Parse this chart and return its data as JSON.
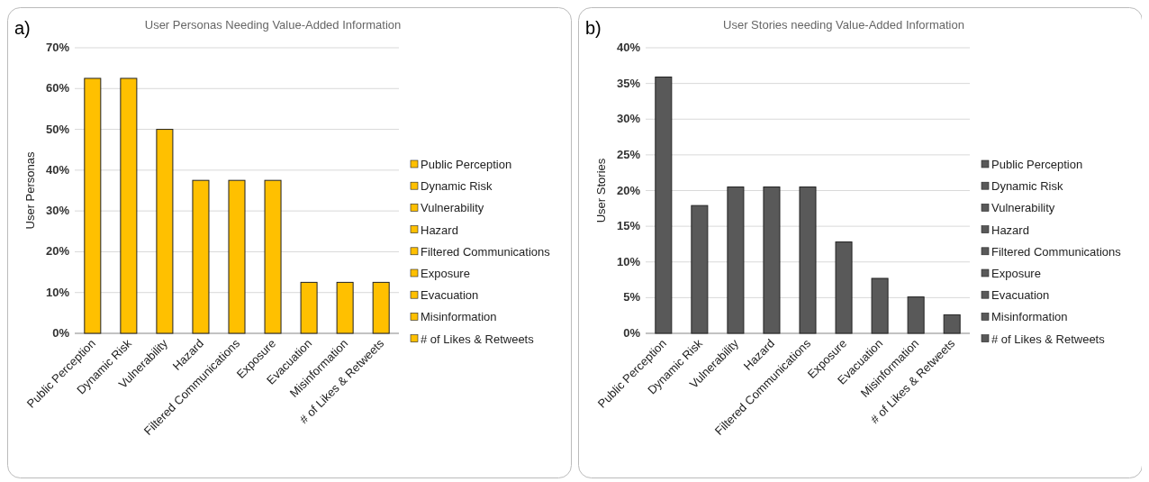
{
  "chart_data": [
    {
      "type": "bar",
      "title": "User Personas Needing Value-Added Information",
      "ylabel": "User Personas",
      "annotations": [
        "a)"
      ],
      "categories": [
        "Public Perception",
        "Dynamic Risk",
        "Vulnerability",
        "Hazard",
        "Filtered Communications",
        "Exposure",
        "Evacuation",
        "Misinformation",
        "# of Likes & Retweets"
      ],
      "series": [
        {
          "name": "Public Perception",
          "color": "#ffc000",
          "values": [
            62.5,
            null,
            null,
            null,
            null,
            null,
            null,
            null,
            null
          ]
        },
        {
          "name": "Dynamic Risk",
          "color": "#ffc000",
          "values": [
            null,
            62.5,
            null,
            null,
            null,
            null,
            null,
            null,
            null
          ]
        },
        {
          "name": "Vulnerability",
          "color": "#ffc000",
          "values": [
            null,
            null,
            50,
            null,
            null,
            null,
            null,
            null,
            null
          ]
        },
        {
          "name": "Hazard",
          "color": "#ffc000",
          "values": [
            null,
            null,
            null,
            37.5,
            null,
            null,
            null,
            null,
            null
          ]
        },
        {
          "name": "Filtered Communications",
          "color": "#ffc000",
          "values": [
            null,
            null,
            null,
            null,
            37.5,
            null,
            null,
            null,
            null
          ]
        },
        {
          "name": "Exposure",
          "color": "#ffc000",
          "values": [
            null,
            null,
            null,
            null,
            null,
            37.5,
            null,
            null,
            null
          ]
        },
        {
          "name": "Evacuation",
          "color": "#ffc000",
          "values": [
            null,
            null,
            null,
            null,
            null,
            null,
            12.5,
            null,
            null
          ]
        },
        {
          "name": "Misinformation",
          "color": "#ffc000",
          "values": [
            null,
            null,
            null,
            null,
            null,
            null,
            null,
            12.5,
            null
          ]
        },
        {
          "name": "# of Likes & Retweets",
          "color": "#ffc000",
          "values": [
            null,
            null,
            null,
            null,
            null,
            null,
            null,
            null,
            12.5
          ]
        }
      ],
      "ylim": [
        0,
        70
      ],
      "yticks": [
        {
          "value": 0,
          "label": "0%"
        },
        {
          "value": 10,
          "label": "10%"
        },
        {
          "value": 20,
          "label": "20%"
        },
        {
          "value": 30,
          "label": "30%"
        },
        {
          "value": 40,
          "label": "40%"
        },
        {
          "value": 50,
          "label": "50%"
        },
        {
          "value": 60,
          "label": "60%"
        },
        {
          "value": 70,
          "label": "70%"
        }
      ],
      "grid": "y",
      "legend": "right"
    },
    {
      "type": "bar",
      "title": "User Stories needing Value-Added Information",
      "ylabel": "User Stories",
      "annotations": [
        "b)"
      ],
      "categories": [
        "Public Perception",
        "Dynamic Risk",
        "Vulnerability",
        "Hazard",
        "Filtered Communications",
        "Exposure",
        "Evacuation",
        "Misinformation",
        "# of Likes & Retweets"
      ],
      "series": [
        {
          "name": "Public Perception",
          "color": "#595959",
          "values": [
            35.9,
            null,
            null,
            null,
            null,
            null,
            null,
            null,
            null
          ]
        },
        {
          "name": "Dynamic Risk",
          "color": "#595959",
          "values": [
            null,
            17.9,
            null,
            null,
            null,
            null,
            null,
            null,
            null
          ]
        },
        {
          "name": "Vulnerability",
          "color": "#595959",
          "values": [
            null,
            null,
            20.5,
            null,
            null,
            null,
            null,
            null,
            null
          ]
        },
        {
          "name": "Hazard",
          "color": "#595959",
          "values": [
            null,
            null,
            null,
            20.5,
            null,
            null,
            null,
            null,
            null
          ]
        },
        {
          "name": "Filtered Communications",
          "color": "#595959",
          "values": [
            null,
            null,
            null,
            null,
            20.5,
            null,
            null,
            null,
            null
          ]
        },
        {
          "name": "Exposure",
          "color": "#595959",
          "values": [
            null,
            null,
            null,
            null,
            null,
            12.8,
            null,
            null,
            null
          ]
        },
        {
          "name": "Evacuation",
          "color": "#595959",
          "values": [
            null,
            null,
            null,
            null,
            null,
            null,
            7.7,
            null,
            null
          ]
        },
        {
          "name": "Misinformation",
          "color": "#595959",
          "values": [
            null,
            null,
            null,
            null,
            null,
            null,
            null,
            5.1,
            null
          ]
        },
        {
          "name": "# of Likes & Retweets",
          "color": "#595959",
          "values": [
            null,
            null,
            null,
            null,
            null,
            null,
            null,
            null,
            2.6
          ]
        }
      ],
      "ylim": [
        0,
        40
      ],
      "yticks": [
        {
          "value": 0,
          "label": "0%"
        },
        {
          "value": 5,
          "label": "5%"
        },
        {
          "value": 10,
          "label": "10%"
        },
        {
          "value": 15,
          "label": "15%"
        },
        {
          "value": 20,
          "label": "20%"
        },
        {
          "value": 25,
          "label": "25%"
        },
        {
          "value": 30,
          "label": "30%"
        },
        {
          "value": 35,
          "label": "35%"
        },
        {
          "value": 40,
          "label": "40%"
        }
      ],
      "grid": "y",
      "legend": "right"
    }
  ]
}
